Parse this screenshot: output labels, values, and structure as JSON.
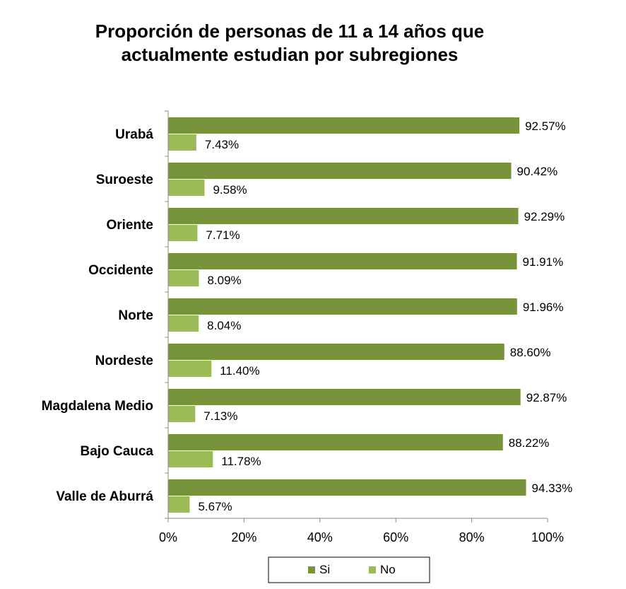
{
  "chart_data": {
    "type": "bar",
    "orientation": "horizontal",
    "title": "Proporción de personas de 11 a 14 años que actualmente estudian por subregiones",
    "title_lines": [
      "Proporción de personas de 11 a 14 años que",
      "actualmente estudian por subregiones"
    ],
    "categories": [
      "Urabá",
      "Suroeste",
      "Oriente",
      "Occidente",
      "Norte",
      "Nordeste",
      "Magdalena Medio",
      "Bajo Cauca",
      "Valle de Aburrá"
    ],
    "series": [
      {
        "name": "Si",
        "color": "#77933C",
        "values": [
          92.57,
          90.42,
          92.29,
          91.91,
          91.96,
          88.6,
          92.87,
          88.22,
          94.33
        ],
        "labels": [
          "92.57%",
          "90.42%",
          "92.29%",
          "91.91%",
          "91.96%",
          "88.60%",
          "92.87%",
          "88.22%",
          "94.33%"
        ]
      },
      {
        "name": "No",
        "color": "#9BBB59",
        "values": [
          7.43,
          9.58,
          7.71,
          8.09,
          8.04,
          11.4,
          7.13,
          11.78,
          5.67
        ],
        "labels": [
          "7.43%",
          "9.58%",
          "7.71%",
          "8.09%",
          "8.04%",
          "11.40%",
          "7.13%",
          "11.78%",
          "5.67%"
        ]
      }
    ],
    "xlim": [
      0,
      100
    ],
    "xticks": [
      "0%",
      "20%",
      "40%",
      "60%",
      "80%",
      "100%"
    ],
    "grid": false,
    "legend_position": "bottom"
  }
}
